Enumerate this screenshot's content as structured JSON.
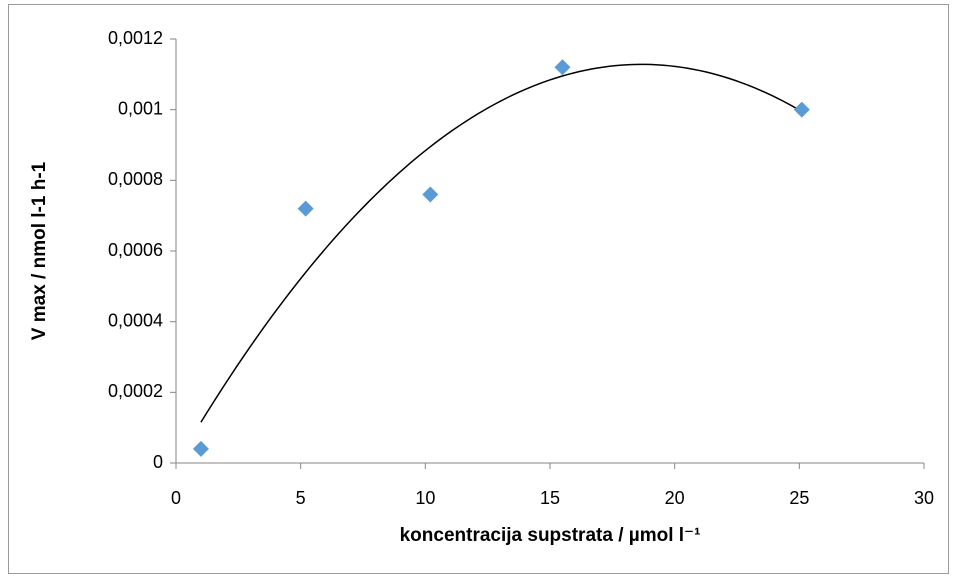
{
  "chart_data": {
    "type": "scatter",
    "x_label": "koncentracija supstrata / µmol l⁻¹",
    "y_label": "V max / nmol l-1 h-1",
    "series": [
      {
        "color": "#5b9bd5",
        "x": [
          1,
          5.2,
          10.2,
          15.5,
          25.1
        ],
        "values": [
          4e-05,
          0.00072,
          0.00076,
          0.00112,
          0.001
        ]
      }
    ],
    "trendline": {
      "type": "polynomial",
      "order": 2,
      "color": "#000000"
    },
    "xlim": [
      0,
      30
    ],
    "xticks": [
      0,
      5,
      10,
      15,
      20,
      25,
      30
    ],
    "ylim": [
      0,
      0.0012
    ],
    "yticks": [
      0,
      {
        "value": 0.0002,
        "label": "0,0002"
      },
      {
        "value": 0.0004,
        "label": "0,0004"
      },
      {
        "value": 0.0006,
        "label": "0,0006"
      },
      {
        "value": 0.0008,
        "label": "0,0008"
      },
      {
        "value": 0.001,
        "label": "0,001"
      },
      {
        "value": 0.0012,
        "label": "0,0012"
      }
    ],
    "grid": false
  }
}
